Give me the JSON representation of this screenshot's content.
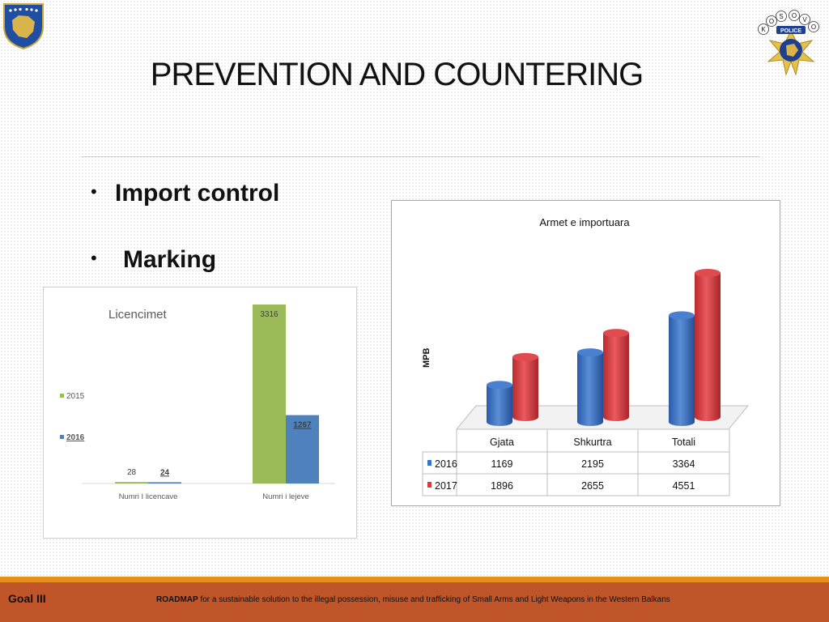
{
  "slide": {
    "title": "PREVENTION AND COUNTERING",
    "bullets": [
      "Import control",
      "Marking"
    ]
  },
  "footer": {
    "goal": "Goal  III",
    "roadmap_bold": "ROADMAP",
    "roadmap_text": "for a sustainable solution to the illegal possession, misuse and trafficking of Small Arms and Light Weapons in the Western Balkans"
  },
  "logos": {
    "police_letters": [
      "K",
      "O",
      "S",
      "O",
      "V",
      "O"
    ],
    "police_text": "POLICE"
  },
  "chart_data": [
    {
      "type": "bar",
      "title": "Licencimet",
      "categories": [
        "Numri I licencave",
        "Numri i lejeve"
      ],
      "series": [
        {
          "name": "2015",
          "values": [
            28,
            3316
          ],
          "color": "#9bbb59"
        },
        {
          "name": "2016",
          "values": [
            24,
            1267
          ],
          "color": "#4f81bd"
        }
      ],
      "ylim": [
        0,
        3316
      ],
      "legend": "left",
      "grid": false
    },
    {
      "type": "bar",
      "title": "Armet e importuara",
      "ylabel": "MPB",
      "categories": [
        "Gjata",
        "Shkurtra",
        "Totali"
      ],
      "series": [
        {
          "name": "2016",
          "values": [
            1169,
            2195,
            3364
          ],
          "color": "#3a72c4"
        },
        {
          "name": "2017",
          "values": [
            1896,
            2655,
            4551
          ],
          "color": "#d83a3f"
        }
      ],
      "ylim": [
        0,
        4551
      ],
      "legend": "data-table",
      "grid": false
    }
  ]
}
